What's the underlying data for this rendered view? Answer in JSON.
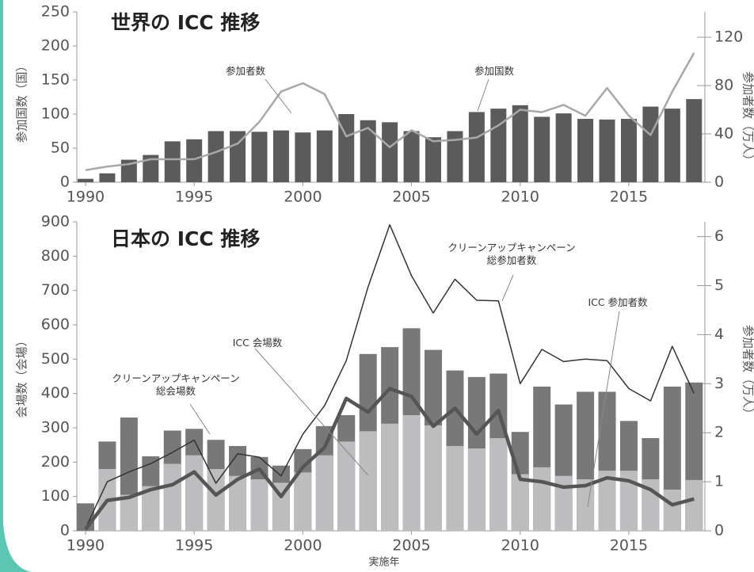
{
  "chart_data": [
    {
      "type": "combo",
      "title": "世界の ICC 推移",
      "ylabel": "参加国数（国）",
      "y2label": "参加者数（万人）",
      "x": [
        1990,
        1991,
        1992,
        1993,
        1994,
        1995,
        1996,
        1997,
        1998,
        1999,
        2000,
        2001,
        2002,
        2003,
        2004,
        2005,
        2006,
        2007,
        2008,
        2009,
        2010,
        2011,
        2012,
        2013,
        2014,
        2015,
        2016,
        2017,
        2018
      ],
      "series": [
        {
          "name": "参加国数",
          "type": "bar",
          "color": "#5b5b5b",
          "values": [
            5,
            13,
            33,
            40,
            60,
            63,
            75,
            75,
            74,
            76,
            73,
            76,
            100,
            91,
            88,
            75,
            66,
            75,
            103,
            108,
            113,
            96,
            101,
            93,
            92,
            93,
            111,
            108,
            122
          ]
        },
        {
          "name": "参加者数",
          "type": "line",
          "axis": "y2",
          "color": "#a8a8a8",
          "line_width": 2.5,
          "values": [
            10,
            13,
            15,
            19,
            19,
            19,
            25,
            32,
            50,
            75,
            82,
            73,
            38,
            45,
            29,
            43,
            34,
            35,
            37,
            47,
            60,
            58,
            64,
            55,
            78,
            55,
            39,
            75,
            107
          ]
        }
      ],
      "xlim": [
        1989.6,
        2018.5
      ],
      "xticks": [
        1990,
        1995,
        2000,
        2005,
        2010,
        2015
      ],
      "ylim": [
        0,
        250
      ],
      "yticks": [
        0,
        50,
        100,
        150,
        200,
        250
      ],
      "y2lim": [
        0,
        141
      ],
      "y2ticks": [
        0,
        40,
        80,
        120
      ]
    },
    {
      "type": "combo",
      "title": "日本の ICC 推移",
      "ylabel": "会場数（会場）",
      "y2label": "参加者数（万人）",
      "xlabel": "実施年",
      "x": [
        1990,
        1991,
        1992,
        1993,
        1994,
        1995,
        1996,
        1997,
        1998,
        1999,
        2000,
        2001,
        2002,
        2003,
        2004,
        2005,
        2006,
        2007,
        2008,
        2009,
        2010,
        2011,
        2012,
        2013,
        2014,
        2015,
        2016,
        2017,
        2018
      ],
      "series": [
        {
          "name": "クリーンアップキャンペーン総会場数",
          "type": "bar",
          "color": "#787878",
          "values": [
            80,
            260,
            330,
            217,
            292,
            297,
            265,
            247,
            215,
            190,
            238,
            305,
            337,
            515,
            535,
            590,
            527,
            467,
            448,
            458,
            288,
            420,
            368,
            405,
            405,
            320,
            270,
            420,
            432
          ]
        },
        {
          "name": "ICC 会場数",
          "type": "bar",
          "color": "#bdbdc0",
          "values": [
            0,
            180,
            105,
            130,
            195,
            220,
            180,
            160,
            150,
            140,
            170,
            220,
            260,
            290,
            312,
            337,
            307,
            247,
            240,
            270,
            165,
            185,
            160,
            150,
            175,
            175,
            150,
            120,
            148
          ]
        },
        {
          "name": "クリーンアップキャンペーン総参加者数",
          "type": "line",
          "axis": "y2",
          "color": "#333333",
          "line_width": 1.5,
          "values": [
            0.05,
            1.0,
            1.2,
            1.37,
            1.6,
            1.85,
            0.97,
            1.57,
            1.5,
            1.12,
            1.97,
            2.55,
            3.47,
            4.97,
            6.24,
            5.2,
            4.44,
            5.13,
            4.7,
            4.69,
            3.0,
            3.7,
            3.45,
            3.5,
            3.47,
            2.9,
            2.65,
            3.76,
            2.8
          ]
        },
        {
          "name": "ICC 参加者数",
          "type": "line",
          "axis": "y2",
          "color": "#555555",
          "line_width": 4.5,
          "values": [
            0.03,
            0.62,
            0.68,
            0.84,
            0.94,
            1.2,
            0.73,
            1.05,
            1.26,
            0.7,
            1.3,
            1.7,
            2.7,
            2.42,
            2.9,
            2.74,
            2.13,
            2.5,
            1.97,
            2.45,
            1.05,
            1.0,
            0.89,
            0.92,
            1.08,
            1.02,
            0.84,
            0.53,
            0.65
          ]
        }
      ],
      "xlim": [
        1989.6,
        2018.5
      ],
      "xticks": [
        1990,
        1995,
        2000,
        2005,
        2010,
        2015
      ],
      "ylim": [
        0,
        900
      ],
      "yticks": [
        0,
        100,
        200,
        300,
        400,
        500,
        600,
        700,
        800,
        900
      ],
      "y2lim": [
        0,
        6.3
      ],
      "y2ticks": [
        0,
        1,
        2,
        3,
        4,
        5,
        6
      ]
    }
  ]
}
